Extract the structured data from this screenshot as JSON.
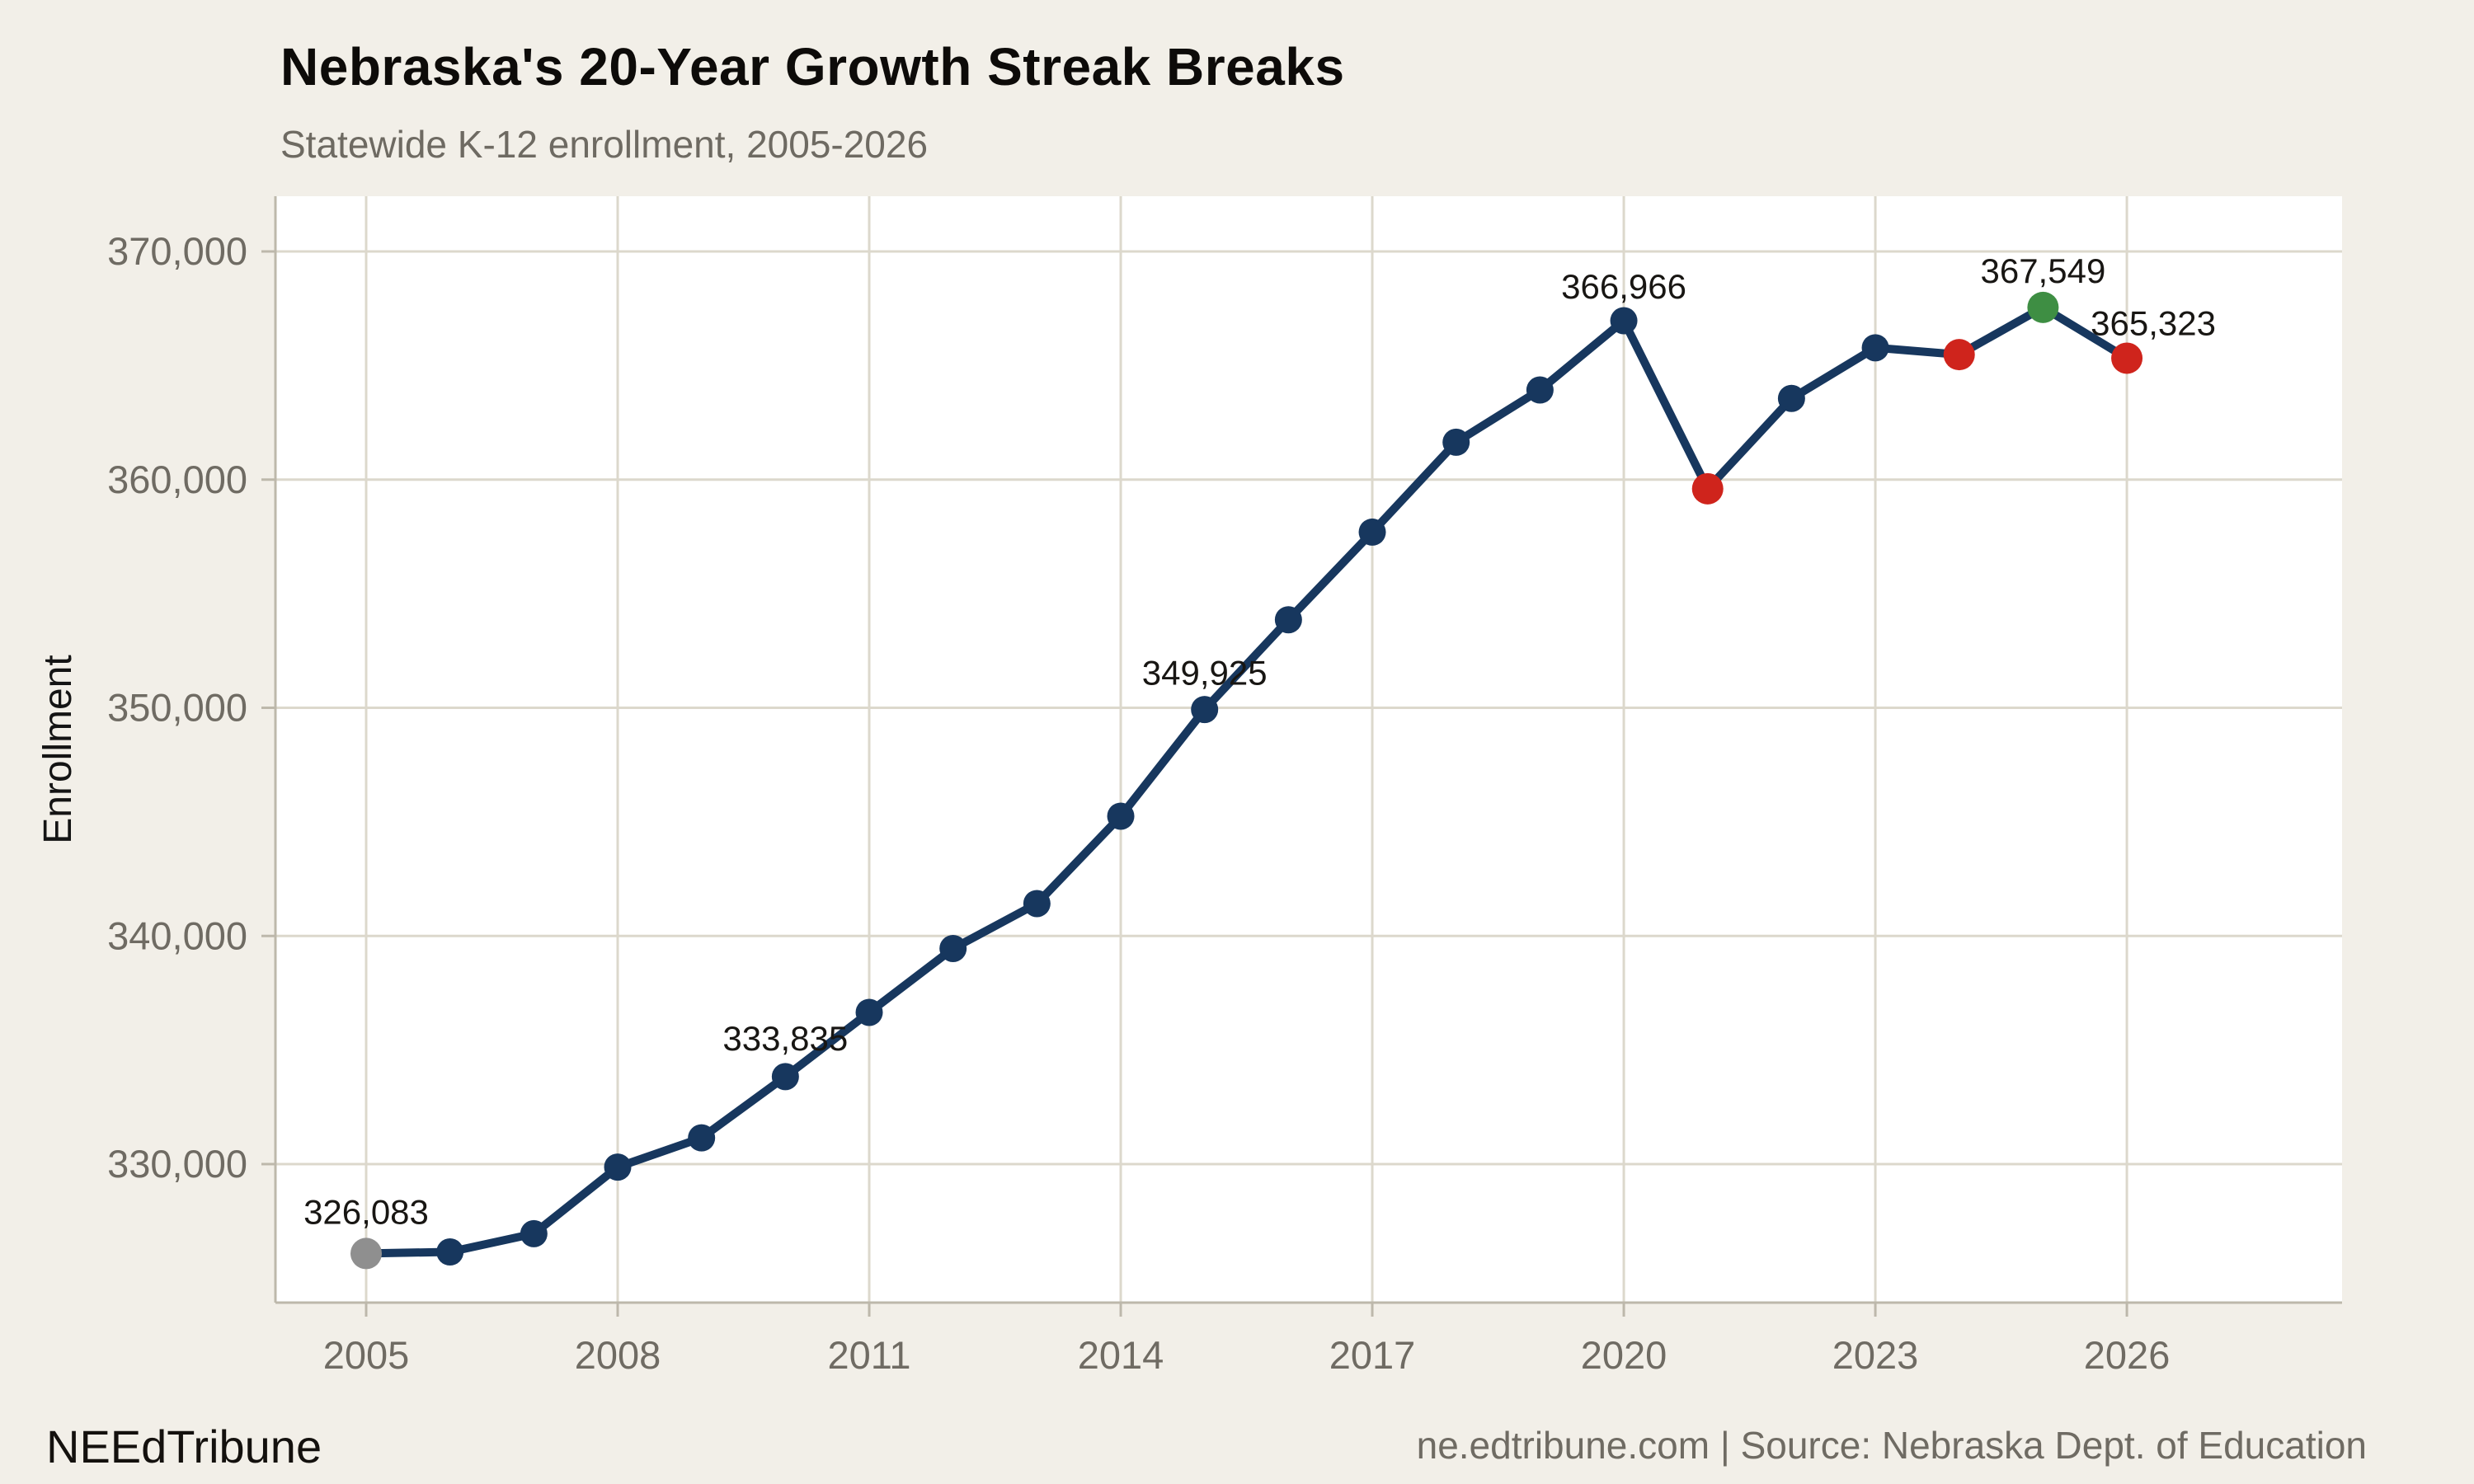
{
  "header": {
    "title": "Nebraska's 20-Year Growth Streak Breaks",
    "subtitle": "Statewide K-12 enrollment, 2005-2026"
  },
  "chart_data": {
    "type": "line",
    "title": "Nebraska's 20-Year Growth Streak Breaks",
    "subtitle": "Statewide K-12 enrollment, 2005-2026",
    "xlabel": "",
    "ylabel": "Enrollment",
    "x": [
      2005,
      2006,
      2007,
      2008,
      2009,
      2010,
      2011,
      2012,
      2013,
      2014,
      2015,
      2016,
      2017,
      2018,
      2019,
      2020,
      2021,
      2022,
      2023,
      2024,
      2025,
      2026
    ],
    "values": [
      326083,
      326150,
      326950,
      329870,
      331150,
      333835,
      336650,
      339450,
      341420,
      345250,
      349925,
      353860,
      357700,
      361640,
      363930,
      366966,
      359600,
      363560,
      365780,
      365480,
      367549,
      365323
    ],
    "series_name": "Statewide K-12 enrollment",
    "ylim": [
      323928,
      372349
    ],
    "yticks": [
      330000,
      340000,
      350000,
      360000,
      370000
    ],
    "ytick_labels": [
      "330,000",
      "340,000",
      "350,000",
      "360,000",
      "370,000"
    ],
    "xticks": [
      2005,
      2008,
      2011,
      2014,
      2017,
      2020,
      2023,
      2026
    ],
    "grid": true,
    "legend": "none",
    "annotations": [
      {
        "year": 2005,
        "label": "326,083"
      },
      {
        "year": 2010,
        "label": "333,835"
      },
      {
        "year": 2015,
        "label": "349,925"
      },
      {
        "year": 2020,
        "label": "366,966"
      },
      {
        "year": 2025,
        "label": "367,549"
      },
      {
        "year": 2026,
        "label": "365,323"
      }
    ],
    "point_colors": {
      "default": "#17375e",
      "2005": "#8f8f8f",
      "2021": "#cf241c",
      "2024": "#cf241c",
      "2025": "#3e8e43",
      "2026": "#cf241c"
    },
    "colors": {
      "line": "#17375e",
      "page_background": "#f2efe8",
      "panel_background": "#ffffff",
      "gridline": "#dcd8cc",
      "axis_line": "#bdb8ab",
      "tick_label": "#6f6b63",
      "annotation_text": "#181613",
      "axis_title": "#141414"
    }
  },
  "footer": {
    "brand": "NEEdTribune",
    "source": "ne.edtribune.com | Source: Nebraska Dept. of Education"
  }
}
